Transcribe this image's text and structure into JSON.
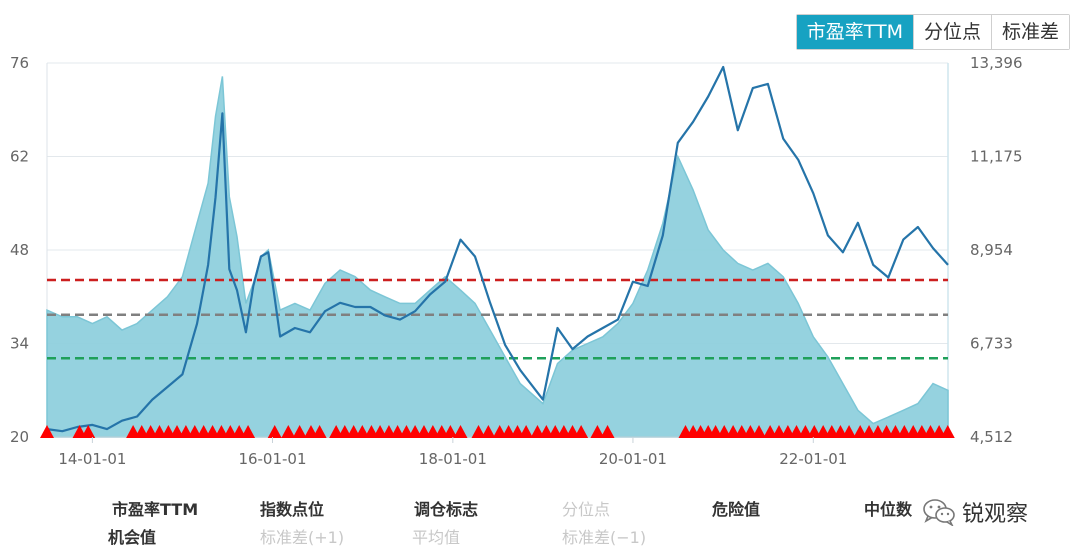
{
  "tabs": [
    {
      "label": "市盈率TTM",
      "active": true
    },
    {
      "label": "分位点",
      "active": false
    },
    {
      "label": "标准差",
      "active": false
    }
  ],
  "chart_data": {
    "type": "area",
    "x_ticks": [
      "14-01-01",
      "16-01-01",
      "18-01-01",
      "20-01-01",
      "22-01-01"
    ],
    "x_range": [
      "2013-07-01",
      "2023-07-01"
    ],
    "y_left": {
      "ticks": [
        "20",
        "34",
        "48",
        "62",
        "76"
      ],
      "range": [
        20,
        76
      ]
    },
    "y_right": {
      "ticks": [
        "4,512",
        "6,733",
        "8,954",
        "11,175",
        "13,396"
      ],
      "range": [
        4512,
        13396
      ]
    },
    "grid": true,
    "series": [
      {
        "name": "市盈率TTM",
        "kind": "area",
        "axis": "left",
        "color": "#8fd0dd",
        "points": [
          [
            "2013-07-01",
            39
          ],
          [
            "2013-09-01",
            38
          ],
          [
            "2013-11-01",
            38
          ],
          [
            "2014-01-01",
            37
          ],
          [
            "2014-03-01",
            38
          ],
          [
            "2014-05-01",
            36
          ],
          [
            "2014-07-01",
            37
          ],
          [
            "2014-09-01",
            39
          ],
          [
            "2014-11-01",
            41
          ],
          [
            "2015-01-01",
            44
          ],
          [
            "2015-03-01",
            52
          ],
          [
            "2015-04-15",
            58
          ],
          [
            "2015-05-15",
            68
          ],
          [
            "2015-06-12",
            74
          ],
          [
            "2015-07-10",
            56
          ],
          [
            "2015-08-10",
            50
          ],
          [
            "2015-09-15",
            40
          ],
          [
            "2015-10-15",
            43
          ],
          [
            "2015-11-15",
            47
          ],
          [
            "2015-12-15",
            48
          ],
          [
            "2016-02-01",
            39
          ],
          [
            "2016-04-01",
            40
          ],
          [
            "2016-06-01",
            39
          ],
          [
            "2016-08-01",
            43
          ],
          [
            "2016-10-01",
            45
          ],
          [
            "2016-12-01",
            44
          ],
          [
            "2017-02-01",
            42
          ],
          [
            "2017-04-01",
            41
          ],
          [
            "2017-06-01",
            40
          ],
          [
            "2017-08-01",
            40
          ],
          [
            "2017-10-01",
            42
          ],
          [
            "2017-12-01",
            44
          ],
          [
            "2018-02-01",
            42
          ],
          [
            "2018-04-01",
            40
          ],
          [
            "2018-06-01",
            36
          ],
          [
            "2018-08-01",
            32
          ],
          [
            "2018-10-01",
            28
          ],
          [
            "2019-01-01",
            25
          ],
          [
            "2019-03-01",
            31
          ],
          [
            "2019-05-01",
            33
          ],
          [
            "2019-07-01",
            34
          ],
          [
            "2019-09-01",
            35
          ],
          [
            "2019-11-01",
            37
          ],
          [
            "2020-01-01",
            40
          ],
          [
            "2020-03-01",
            45
          ],
          [
            "2020-05-01",
            52
          ],
          [
            "2020-07-01",
            62
          ],
          [
            "2020-09-01",
            57
          ],
          [
            "2020-11-01",
            51
          ],
          [
            "2021-01-01",
            48
          ],
          [
            "2021-03-01",
            46
          ],
          [
            "2021-05-01",
            45
          ],
          [
            "2021-07-01",
            46
          ],
          [
            "2021-09-01",
            44
          ],
          [
            "2021-11-01",
            40
          ],
          [
            "2022-01-01",
            35
          ],
          [
            "2022-03-01",
            32
          ],
          [
            "2022-05-01",
            28
          ],
          [
            "2022-07-01",
            24
          ],
          [
            "2022-09-01",
            22
          ],
          [
            "2022-11-01",
            23
          ],
          [
            "2023-01-01",
            24
          ],
          [
            "2023-03-01",
            25
          ],
          [
            "2023-05-01",
            28
          ],
          [
            "2023-07-01",
            27
          ]
        ]
      },
      {
        "name": "指数点位",
        "kind": "line",
        "axis": "right",
        "color": "#2574a9",
        "points": [
          [
            "2013-07-01",
            4700
          ],
          [
            "2013-09-01",
            4650
          ],
          [
            "2013-11-01",
            4750
          ],
          [
            "2014-01-01",
            4800
          ],
          [
            "2014-03-01",
            4700
          ],
          [
            "2014-05-01",
            4900
          ],
          [
            "2014-07-01",
            5000
          ],
          [
            "2014-09-01",
            5400
          ],
          [
            "2014-11-01",
            5700
          ],
          [
            "2015-01-01",
            6000
          ],
          [
            "2015-03-01",
            7200
          ],
          [
            "2015-04-15",
            8600
          ],
          [
            "2015-05-15",
            10200
          ],
          [
            "2015-06-12",
            12200
          ],
          [
            "2015-07-10",
            8500
          ],
          [
            "2015-08-10",
            8000
          ],
          [
            "2015-09-15",
            7000
          ],
          [
            "2015-10-15",
            8100
          ],
          [
            "2015-11-15",
            8800
          ],
          [
            "2015-12-15",
            8900
          ],
          [
            "2016-02-01",
            6900
          ],
          [
            "2016-04-01",
            7100
          ],
          [
            "2016-06-01",
            7000
          ],
          [
            "2016-08-01",
            7500
          ],
          [
            "2016-10-01",
            7700
          ],
          [
            "2016-12-01",
            7600
          ],
          [
            "2017-02-01",
            7600
          ],
          [
            "2017-04-01",
            7400
          ],
          [
            "2017-06-01",
            7300
          ],
          [
            "2017-08-01",
            7500
          ],
          [
            "2017-10-01",
            7900
          ],
          [
            "2017-12-01",
            8200
          ],
          [
            "2018-02-01",
            9200
          ],
          [
            "2018-04-01",
            8800
          ],
          [
            "2018-06-01",
            7700
          ],
          [
            "2018-08-01",
            6700
          ],
          [
            "2018-10-01",
            6100
          ],
          [
            "2019-01-01",
            5400
          ],
          [
            "2019-03-01",
            7100
          ],
          [
            "2019-05-01",
            6600
          ],
          [
            "2019-07-01",
            6900
          ],
          [
            "2019-09-01",
            7100
          ],
          [
            "2019-11-01",
            7300
          ],
          [
            "2020-01-01",
            8200
          ],
          [
            "2020-03-01",
            8100
          ],
          [
            "2020-05-01",
            9300
          ],
          [
            "2020-07-01",
            11500
          ],
          [
            "2020-09-01",
            12000
          ],
          [
            "2020-11-01",
            12600
          ],
          [
            "2021-01-01",
            13300
          ],
          [
            "2021-03-01",
            11800
          ],
          [
            "2021-05-01",
            12800
          ],
          [
            "2021-07-01",
            12900
          ],
          [
            "2021-09-01",
            11600
          ],
          [
            "2021-11-01",
            11100
          ],
          [
            "2022-01-01",
            10300
          ],
          [
            "2022-03-01",
            9300
          ],
          [
            "2022-05-01",
            8900
          ],
          [
            "2022-07-01",
            9600
          ],
          [
            "2022-09-01",
            8600
          ],
          [
            "2022-11-01",
            8300
          ],
          [
            "2023-01-01",
            9200
          ],
          [
            "2023-03-01",
            9500
          ],
          [
            "2023-05-01",
            9000
          ],
          [
            "2023-07-01",
            8600
          ]
        ]
      }
    ],
    "reference_lines": [
      {
        "name": "危险值",
        "axis": "left",
        "value": 43.5,
        "color": "#cc1f1f"
      },
      {
        "name": "中位数",
        "axis": "left",
        "value": 38.3,
        "color": "#808080"
      },
      {
        "name": "机会值",
        "axis": "left",
        "value": 31.8,
        "color": "#1fa05a"
      }
    ],
    "markers": {
      "name": "调仓标志",
      "color": "#ff0000",
      "symbol": "triangle",
      "dates": [
        "2013-07-01",
        "2013-11-10",
        "2013-12-15",
        "2014-06-15",
        "2014-07-20",
        "2014-08-25",
        "2014-09-30",
        "2014-11-05",
        "2014-12-10",
        "2015-01-15",
        "2015-02-20",
        "2015-03-28",
        "2015-05-03",
        "2015-06-08",
        "2015-07-14",
        "2015-08-19",
        "2015-09-24",
        "2016-01-10",
        "2016-03-05",
        "2016-04-20",
        "2016-06-05",
        "2016-07-10",
        "2016-09-15",
        "2016-10-20",
        "2016-11-25",
        "2016-12-30",
        "2017-02-05",
        "2017-03-12",
        "2017-04-17",
        "2017-05-22",
        "2017-06-27",
        "2017-08-01",
        "2017-09-06",
        "2017-10-12",
        "2017-11-17",
        "2017-12-22",
        "2018-02-01",
        "2018-04-15",
        "2018-05-25",
        "2018-07-10",
        "2018-08-15",
        "2018-09-20",
        "2018-10-25",
        "2018-12-10",
        "2019-01-15",
        "2019-02-20",
        "2019-03-27",
        "2019-05-01",
        "2019-06-05",
        "2019-08-10",
        "2019-09-20",
        "2020-08-01",
        "2020-09-01",
        "2020-10-01",
        "2020-11-01",
        "2020-12-01",
        "2021-01-05",
        "2021-02-10",
        "2021-03-17",
        "2021-04-21",
        "2021-05-26",
        "2021-07-10",
        "2021-08-15",
        "2021-09-20",
        "2021-10-25",
        "2021-11-30",
        "2022-01-05",
        "2022-02-10",
        "2022-03-17",
        "2022-04-21",
        "2022-05-26",
        "2022-07-10",
        "2022-08-15",
        "2022-09-20",
        "2022-10-25",
        "2022-11-30",
        "2023-01-05",
        "2023-02-10",
        "2023-03-17",
        "2023-04-21",
        "2023-05-26",
        "2023-06-30"
      ]
    }
  },
  "legend": [
    {
      "label": "市盈率TTM",
      "symbol": "dot",
      "color": "#7ecbdc",
      "enabled": true
    },
    {
      "label": "指数点位",
      "symbol": "line",
      "color": "#2574a9",
      "enabled": true
    },
    {
      "label": "调仓标志",
      "symbol": "triangle",
      "color": "#ff0000",
      "enabled": true
    },
    {
      "label": "分位点",
      "symbol": "dot",
      "color": "#c8c8c8",
      "enabled": false
    },
    {
      "label": "危险值",
      "symbol": "dash",
      "color": "#cc1f1f",
      "enabled": true
    },
    {
      "label": "中位数",
      "symbol": "dash",
      "color": "#808080",
      "enabled": true
    },
    {
      "label": "机会值",
      "symbol": "dash",
      "color": "#1fa05a",
      "enabled": true
    },
    {
      "label": "标准差(+1)",
      "symbol": "dash",
      "color": "#c8c8c8",
      "enabled": false
    },
    {
      "label": "平均值",
      "symbol": "dash",
      "color": "#c8c8c8",
      "enabled": false
    },
    {
      "label": "标准差(−1)",
      "symbol": "dash",
      "color": "#c8c8c8",
      "enabled": false
    }
  ],
  "watermark": {
    "text": "锐观察",
    "icon": "wechat-icon"
  }
}
